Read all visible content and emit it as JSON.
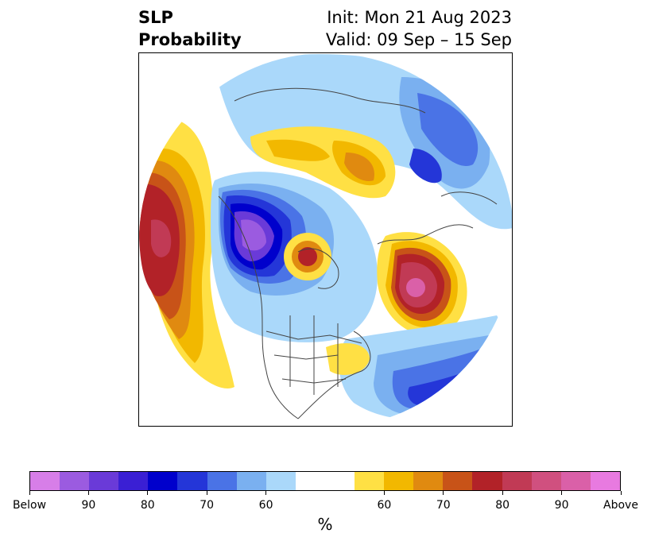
{
  "title": {
    "left_line1": "SLP",
    "left_line2": "Probability",
    "right_line1": "Init: Mon 21 Aug 2023",
    "right_line2": "Valid: 09 Sep – 15 Sep"
  },
  "map": {
    "projection": "north-polar-stereographic",
    "field": "sea level pressure tercile probability"
  },
  "colorbar": {
    "unit": "%",
    "tick_labels": [
      "Below",
      "90",
      "80",
      "70",
      "60",
      "60",
      "70",
      "80",
      "90",
      "Above"
    ],
    "colors_below": [
      "#d77ee8",
      "#9b5be0",
      "#6a3ad8",
      "#3a1fd4",
      "#0000cc",
      "#2436d8",
      "#4a73e6",
      "#7ab0f0",
      "#aad8fa"
    ],
    "color_neutral": "#ffffff",
    "colors_above": [
      "#ffe044",
      "#f2b800",
      "#e08a10",
      "#c85318",
      "#b22228",
      "#c13a55",
      "#d0507f",
      "#da60a8",
      "#e87ae0"
    ]
  }
}
